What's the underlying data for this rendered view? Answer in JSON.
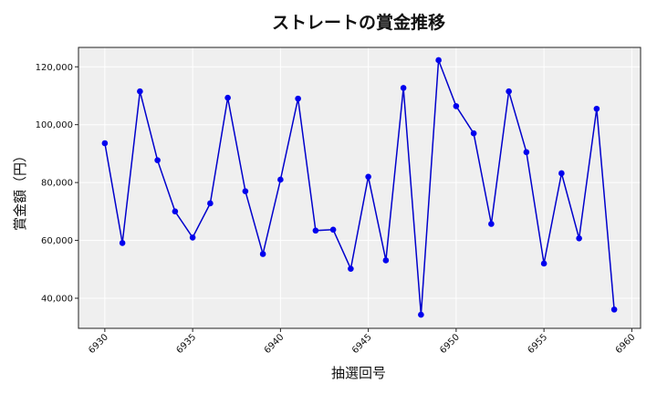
{
  "chart_data": {
    "type": "line",
    "title": "ストレートの賞金推移",
    "xlabel": "抽選回号",
    "ylabel": "賞金額（円）",
    "x": [
      6930,
      6931,
      6932,
      6933,
      6934,
      6935,
      6936,
      6937,
      6938,
      6939,
      6940,
      6941,
      6942,
      6943,
      6944,
      6945,
      6946,
      6947,
      6948,
      6949,
      6950,
      6951,
      6952,
      6953,
      6954,
      6955,
      6956,
      6957,
      6958,
      6959
    ],
    "y": [
      93600,
      59100,
      111500,
      87700,
      70000,
      61000,
      72800,
      109300,
      77000,
      55300,
      81000,
      109000,
      63400,
      63700,
      50200,
      82000,
      53100,
      112700,
      34300,
      122300,
      106400,
      97000,
      65700,
      111500,
      90500,
      52000,
      83200,
      60700,
      105500,
      36100
    ],
    "xlim": [
      6928.5,
      6960.5
    ],
    "ylim": [
      29600,
      126700
    ],
    "xticks": [
      "6930",
      "6935",
      "6940",
      "6945",
      "6950",
      "6955",
      "6960"
    ],
    "yticks": [
      "40,000",
      "60,000",
      "80,000",
      "100,000",
      "120,000"
    ],
    "grid": true,
    "colors": {
      "line": "#0000cc",
      "marker": "#0000ee",
      "plot_bg": "#efefef",
      "grid": "#ffffff"
    }
  }
}
